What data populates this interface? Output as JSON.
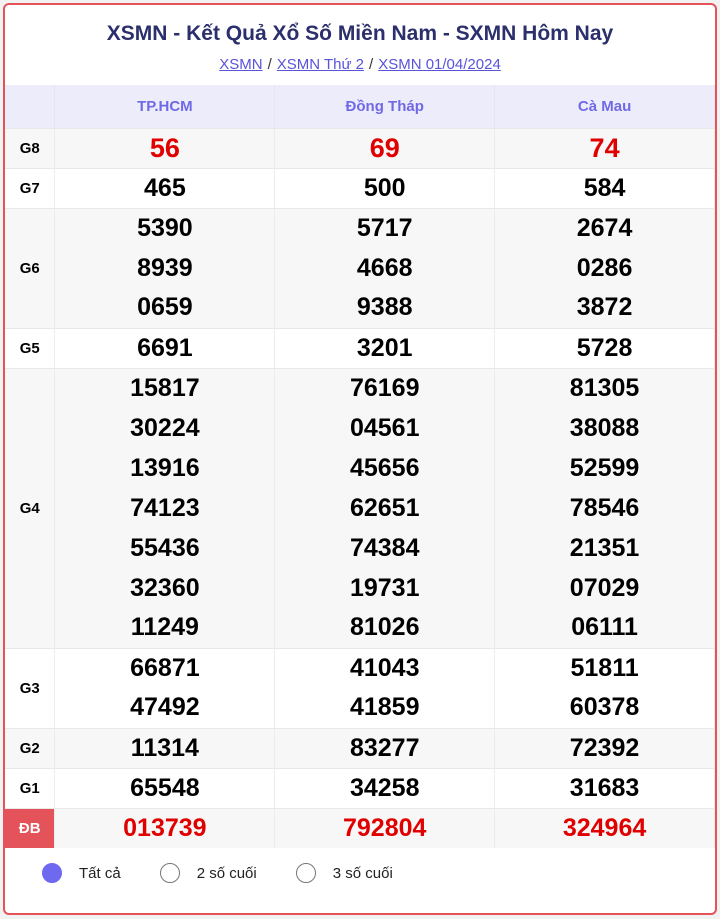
{
  "header": {
    "title": "XSMN - Kết Quả Xổ Số Miền Nam - SXMN Hôm Nay",
    "breadcrumbs": [
      "XSMN",
      "XSMN Thứ 2",
      "XSMN 01/04/2024"
    ],
    "separator": "/"
  },
  "table": {
    "provinces": [
      "TP.HCM",
      "Đồng Tháp",
      "Cà Mau"
    ],
    "prizes": [
      {
        "label": "G8",
        "rows": [
          [
            "56",
            "69",
            "74"
          ]
        ]
      },
      {
        "label": "G7",
        "rows": [
          [
            "465",
            "500",
            "584"
          ]
        ]
      },
      {
        "label": "G6",
        "rows": [
          [
            "5390",
            "5717",
            "2674"
          ],
          [
            "8939",
            "4668",
            "0286"
          ],
          [
            "0659",
            "9388",
            "3872"
          ]
        ]
      },
      {
        "label": "G5",
        "rows": [
          [
            "6691",
            "3201",
            "5728"
          ]
        ]
      },
      {
        "label": "G4",
        "rows": [
          [
            "15817",
            "76169",
            "81305"
          ],
          [
            "30224",
            "04561",
            "38088"
          ],
          [
            "13916",
            "45656",
            "52599"
          ],
          [
            "74123",
            "62651",
            "78546"
          ],
          [
            "55436",
            "74384",
            "21351"
          ],
          [
            "32360",
            "19731",
            "07029"
          ],
          [
            "11249",
            "81026",
            "06111"
          ]
        ]
      },
      {
        "label": "G3",
        "rows": [
          [
            "66871",
            "41043",
            "51811"
          ],
          [
            "47492",
            "41859",
            "60378"
          ]
        ]
      },
      {
        "label": "G2",
        "rows": [
          [
            "11314",
            "83277",
            "72392"
          ]
        ]
      },
      {
        "label": "G1",
        "rows": [
          [
            "65548",
            "34258",
            "31683"
          ]
        ]
      },
      {
        "label": "ĐB",
        "rows": [
          [
            "013739",
            "792804",
            "324964"
          ]
        ]
      }
    ]
  },
  "filter": {
    "options": [
      {
        "label": "Tất cả",
        "selected": true
      },
      {
        "label": "2 số cuối",
        "selected": false
      },
      {
        "label": "3 số cuối",
        "selected": false
      }
    ]
  },
  "colors": {
    "accent": "#6f69ef",
    "prize_red": "#e00000",
    "border": "#e4525a",
    "title": "#2b2f6b"
  }
}
